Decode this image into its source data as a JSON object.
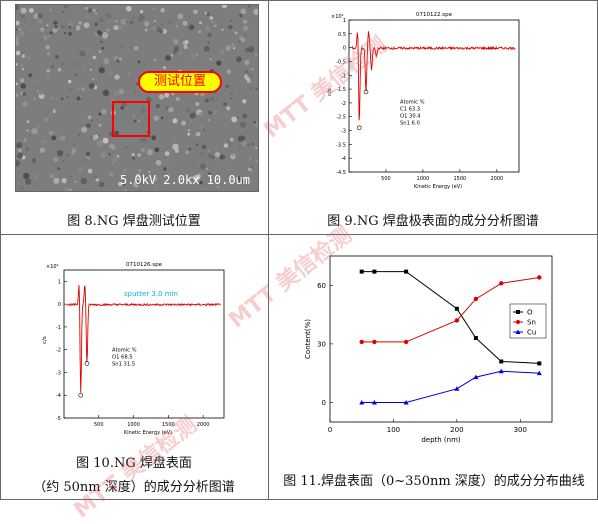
{
  "captions": {
    "fig8": "图 8.NG 焊盘测试位置",
    "fig9": "图 9.NG 焊盘极表面的成分分析图谱",
    "fig10_line1": "图 10.NG 焊盘表面",
    "fig10_line2": "（约 50nm 深度）的成分分析图谱",
    "fig11": "图 11.焊盘表面（0~350nm 深度）的成分分布曲线"
  },
  "sem": {
    "callout": "测试位置",
    "footer": "5.0kV  2.0kx  10.0um"
  },
  "watermark": "美信检测",
  "colors": {
    "spectrum": "#e00000",
    "O": "#000000",
    "Sn": "#e00000",
    "Cu": "#0000dd",
    "callout_bg": "#ffff00",
    "callout_text": "#ff0000"
  },
  "chart_data": [
    {
      "type": "line",
      "title": "0710122.spe",
      "ylabel": "c/s",
      "xlabel": "Kinetic Energy (eV)",
      "y_scale_label": "×10⁴",
      "x_ticks": [
        "500",
        "1000",
        "1500",
        "2000"
      ],
      "y_ticks": [
        "1",
        "0.5",
        "0",
        "-0.5",
        "-1",
        "-1.5",
        "-2",
        "-2.5",
        "-3",
        "-3.5",
        "-4",
        "-4.5"
      ],
      "xlim": [
        0,
        2300
      ],
      "ylim": [
        -4.5,
        1
      ],
      "annotation": [
        "Atomic %",
        "C1  63.3",
        "O1  30.4",
        "Sn1  6.0"
      ],
      "peaks": [
        {
          "x": 120,
          "y": 0.95
        },
        {
          "x": 138,
          "y": -2.9
        },
        {
          "x": 230,
          "y": -1.6
        },
        {
          "x": 265,
          "y": 0.6
        },
        {
          "x": 305,
          "y": -0.8
        },
        {
          "x": 370,
          "y": -0.3
        }
      ]
    },
    {
      "type": "line",
      "title": "0710126.spe",
      "subtitle": "sputter 3.0 min",
      "ylabel": "c/s",
      "xlabel": "Kinetic Energy (eV)",
      "y_scale_label": "×10⁴",
      "x_ticks": [
        "500",
        "1000",
        "1500",
        "2000"
      ],
      "y_ticks": [
        "1",
        "0",
        "-1",
        "-2",
        "-3",
        "-4",
        "-5"
      ],
      "xlim": [
        0,
        2300
      ],
      "ylim": [
        -5,
        1.5
      ],
      "annotation": [
        "Atomic %",
        "O1  68.5",
        "Sn1  31.5"
      ],
      "peaks": [
        {
          "x": 220,
          "y": 1.2
        },
        {
          "x": 240,
          "y": -4.0
        },
        {
          "x": 300,
          "y": 0.9
        },
        {
          "x": 330,
          "y": -2.6
        }
      ]
    },
    {
      "type": "line",
      "xlabel": "depth (nm)",
      "ylabel": "Content(%)",
      "x_ticks": [
        "0",
        "100",
        "200",
        "300"
      ],
      "y_ticks": [
        "0",
        "30",
        "60"
      ],
      "xlim": [
        0,
        350
      ],
      "ylim": [
        -10,
        75
      ],
      "x": [
        50,
        70,
        120,
        200,
        230,
        270,
        330
      ],
      "series": [
        {
          "name": "O",
          "values": [
            67,
            67,
            67,
            48,
            33,
            21,
            20
          ]
        },
        {
          "name": "Sn",
          "values": [
            31,
            31,
            31,
            42,
            53,
            61,
            64
          ]
        },
        {
          "name": "Cu",
          "values": [
            0,
            0,
            0,
            7,
            13,
            16,
            15
          ]
        }
      ]
    }
  ]
}
